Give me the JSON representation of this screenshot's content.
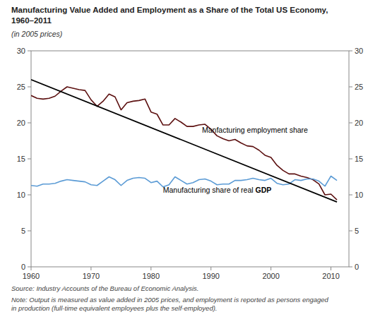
{
  "chart_data": {
    "type": "line",
    "title": "Manufacturing Value Added and Employment as a Share of the Total US Economy,\n1960–2011",
    "subtitle": "(in 2005 prices)",
    "source": "Source: Industry Accounts of the Bureau of Economic Analysis.",
    "note": "Note: Output is measured as value added in 2005 prices, and employment is reported as persons engaged\nin production (full-time equivalent employees plus the self-employed).",
    "x": [
      1960,
      1961,
      1962,
      1963,
      1964,
      1965,
      1966,
      1967,
      1968,
      1969,
      1970,
      1971,
      1972,
      1973,
      1974,
      1975,
      1976,
      1977,
      1978,
      1979,
      1980,
      1981,
      1982,
      1983,
      1984,
      1985,
      1986,
      1987,
      1988,
      1989,
      1990,
      1991,
      1992,
      1993,
      1994,
      1995,
      1996,
      1997,
      1998,
      1999,
      2000,
      2001,
      2002,
      2003,
      2004,
      2005,
      2006,
      2007,
      2008,
      2009,
      2010,
      2011
    ],
    "series": [
      {
        "color": "#5c1010",
        "values": [
          23.8,
          23.4,
          23.3,
          23.4,
          23.7,
          24.4,
          25.0,
          24.8,
          24.6,
          24.5,
          23.2,
          22.3,
          23.0,
          24.0,
          23.6,
          21.8,
          22.8,
          23.0,
          23.1,
          23.3,
          21.5,
          21.2,
          19.7,
          19.7,
          20.6,
          20.1,
          19.5,
          19.5,
          19.7,
          19.8,
          19.1,
          18.2,
          17.8,
          17.5,
          17.7,
          17.2,
          16.8,
          16.7,
          16.2,
          15.5,
          15.2,
          14.1,
          13.4,
          12.9,
          12.9,
          12.6,
          12.4,
          12.1,
          11.5,
          10.0,
          10.1,
          9.3
        ]
      },
      {
        "color": "#5b9bd5",
        "values": [
          11.3,
          11.2,
          11.5,
          11.5,
          11.6,
          11.9,
          12.1,
          12.0,
          11.9,
          11.8,
          11.4,
          11.3,
          11.9,
          12.5,
          12.1,
          11.3,
          12.0,
          12.3,
          12.4,
          12.3,
          11.7,
          11.9,
          11.1,
          11.4,
          12.5,
          12.0,
          11.5,
          11.7,
          12.1,
          12.2,
          11.9,
          11.4,
          11.5,
          11.5,
          12.0,
          12.0,
          12.1,
          12.3,
          12.1,
          12.0,
          12.3,
          11.6,
          11.4,
          11.5,
          12.1,
          12.0,
          12.2,
          12.2,
          11.9,
          11.2,
          12.6,
          12.0
        ]
      },
      {
        "color": "#000000",
        "x": [
          1960,
          2011
        ],
        "values": [
          26.0,
          9.0
        ]
      }
    ],
    "annotations": [
      {
        "text": [
          "Manfacturing employment share"
        ],
        "x": 1988.5,
        "y": 18.6
      },
      {
        "text": [
          "Manufacturing share of real ",
          "GDP"
        ],
        "x": 1982.0,
        "y": 10.3
      }
    ],
    "xlim": [
      1960,
      2013
    ],
    "ylim": [
      0,
      30
    ],
    "xticks": [
      1960,
      1970,
      1980,
      1990,
      2000,
      2010
    ],
    "yticks": [
      0,
      5,
      10,
      15,
      20,
      25,
      30
    ],
    "y2lim": [
      0,
      30
    ],
    "y2ticks": [
      0,
      5,
      10,
      15,
      20,
      25,
      30
    ],
    "grid": false
  }
}
